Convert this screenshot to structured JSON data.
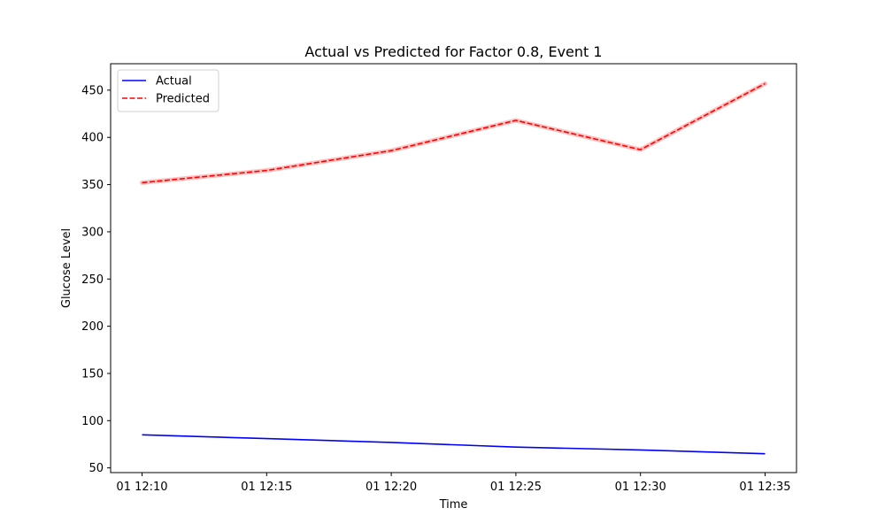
{
  "chart_data": {
    "type": "line",
    "title": "Actual vs Predicted for Factor 0.8, Event 1",
    "xlabel": "Time",
    "ylabel": "Glucose Level",
    "x": [
      "01 12:10",
      "01 12:15",
      "01 12:20",
      "01 12:25",
      "01 12:30",
      "01 12:35"
    ],
    "ylim": [
      45,
      478
    ],
    "yticks": [
      50,
      100,
      150,
      200,
      250,
      300,
      350,
      400,
      450
    ],
    "grid": false,
    "legend_position": "top-left",
    "series": [
      {
        "name": "Actual",
        "color": "#0000ff",
        "line_style": "solid",
        "values": [
          85,
          81,
          77,
          72,
          69,
          65
        ]
      },
      {
        "name": "Predicted",
        "color": "#ff0000",
        "line_style": "dashed",
        "band_color": "#ffb0b0",
        "values": [
          352,
          365,
          386,
          418,
          387,
          457
        ]
      }
    ]
  }
}
